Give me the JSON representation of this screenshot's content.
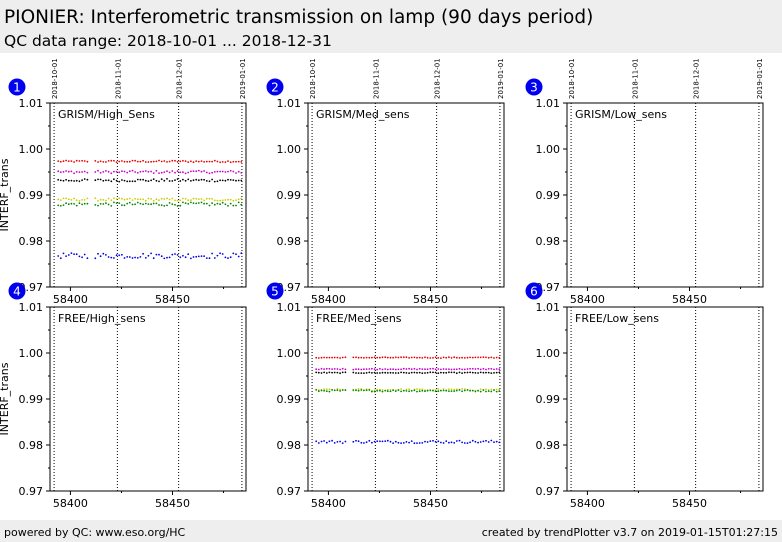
{
  "header": {
    "title": "PIONIER: Interferometric transmission on lamp (90 days period)",
    "subtitle": "QC data range: 2018-10-01 ... 2018-12-31"
  },
  "footer": {
    "left": "powered by QC: www.eso.org/HC",
    "right": "created by trendPlotter v3.7 on 2019-01-15T01:27:15"
  },
  "colors": {
    "red": "#ee0000",
    "magenta": "#cc00cc",
    "black": "#000000",
    "yellow": "#cccc00",
    "green": "#008800",
    "blue": "#0000ee",
    "badge": "#0000ee",
    "header_bg": "#eeeeee"
  },
  "chart_data": [
    {
      "type": "scatter",
      "number": "1",
      "label": "GRISM/High_Sens",
      "ylabel": "INTERF_trans",
      "xlim": [
        58390,
        58486
      ],
      "ylim": [
        0.97,
        1.01
      ],
      "yticks": [
        "1.01",
        "1.00",
        "0.99",
        "0.98",
        "0.97"
      ],
      "xticks": [
        "58400",
        "58450"
      ],
      "date_markers": [
        {
          "label": "2018-10-01",
          "mjd": 58392
        },
        {
          "label": "2018-11-01",
          "mjd": 58423
        },
        {
          "label": "2018-12-01",
          "mjd": 58453
        },
        {
          "label": "2019-01-01",
          "mjd": 58484
        }
      ],
      "series": [
        {
          "color": "red",
          "level": 0.9973,
          "spread": 0.0002
        },
        {
          "color": "magenta",
          "level": 0.995,
          "spread": 0.0003
        },
        {
          "color": "black",
          "level": 0.9932,
          "spread": 0.0003
        },
        {
          "color": "yellow",
          "level": 0.989,
          "spread": 0.0003
        },
        {
          "color": "green",
          "level": 0.988,
          "spread": 0.0004
        },
        {
          "color": "blue",
          "level": 0.9768,
          "spread": 0.0006
        }
      ]
    },
    {
      "type": "scatter",
      "number": "2",
      "label": "GRISM/Med_sens",
      "ylabel": "",
      "xlim": [
        58390,
        58486
      ],
      "ylim": [
        0.97,
        1.01
      ],
      "yticks": [
        "1.01",
        "1.00",
        "0.99",
        "0.98",
        "0.97"
      ],
      "xticks": [
        "58400",
        "58450"
      ],
      "date_markers": [
        {
          "label": "2018-10-01",
          "mjd": 58392
        },
        {
          "label": "2018-11-01",
          "mjd": 58423
        },
        {
          "label": "2018-12-01",
          "mjd": 58453
        },
        {
          "label": "2019-01-01",
          "mjd": 58484
        }
      ],
      "series": []
    },
    {
      "type": "scatter",
      "number": "3",
      "label": "GRISM/Low_sens",
      "ylabel": "",
      "xlim": [
        58390,
        58486
      ],
      "ylim": [
        0.97,
        1.01
      ],
      "yticks": [
        "1.01",
        "1.00",
        "0.99",
        "0.98",
        "0.97"
      ],
      "xticks": [
        "58400",
        "58450"
      ],
      "date_markers": [
        {
          "label": "2018-10-01",
          "mjd": 58392
        },
        {
          "label": "2018-11-01",
          "mjd": 58423
        },
        {
          "label": "2018-12-01",
          "mjd": 58453
        },
        {
          "label": "2019-01-01",
          "mjd": 58484
        }
      ],
      "series": []
    },
    {
      "type": "scatter",
      "number": "4",
      "label": "FREE/High_sens",
      "ylabel": "INTERF_trans",
      "xlim": [
        58390,
        58486
      ],
      "ylim": [
        0.97,
        1.01
      ],
      "yticks": [
        "1.01",
        "1.00",
        "0.99",
        "0.98",
        "0.97"
      ],
      "xticks": [
        "58400",
        "58450"
      ],
      "date_markers": [
        {
          "label": "",
          "mjd": 58392
        },
        {
          "label": "",
          "mjd": 58423
        },
        {
          "label": "",
          "mjd": 58453
        },
        {
          "label": "",
          "mjd": 58484
        }
      ],
      "series": []
    },
    {
      "type": "scatter",
      "number": "5",
      "label": "FREE/Med_sens",
      "ylabel": "",
      "xlim": [
        58390,
        58486
      ],
      "ylim": [
        0.97,
        1.01
      ],
      "yticks": [
        "1.01",
        "1.00",
        "0.99",
        "0.98",
        "0.97"
      ],
      "xticks": [
        "58400",
        "58450"
      ],
      "date_markers": [
        {
          "label": "",
          "mjd": 58392
        },
        {
          "label": "",
          "mjd": 58423
        },
        {
          "label": "",
          "mjd": 58453
        },
        {
          "label": "",
          "mjd": 58484
        }
      ],
      "series": [
        {
          "color": "red",
          "level": 0.999,
          "spread": 0.0001
        },
        {
          "color": "magenta",
          "level": 0.9965,
          "spread": 0.0001
        },
        {
          "color": "black",
          "level": 0.9957,
          "spread": 0.0001
        },
        {
          "color": "yellow",
          "level": 0.992,
          "spread": 0.0002
        },
        {
          "color": "green",
          "level": 0.9918,
          "spread": 0.0002
        },
        {
          "color": "blue",
          "level": 0.9807,
          "spread": 0.0003
        }
      ]
    },
    {
      "type": "scatter",
      "number": "6",
      "label": "FREE/Low_sens",
      "ylabel": "",
      "xlim": [
        58390,
        58486
      ],
      "ylim": [
        0.97,
        1.01
      ],
      "yticks": [
        "1.01",
        "1.00",
        "0.99",
        "0.98",
        "0.97"
      ],
      "xticks": [
        "58400",
        "58450"
      ],
      "date_markers": [
        {
          "label": "",
          "mjd": 58392
        },
        {
          "label": "",
          "mjd": 58423
        },
        {
          "label": "",
          "mjd": 58453
        },
        {
          "label": "",
          "mjd": 58484
        }
      ],
      "series": []
    }
  ]
}
